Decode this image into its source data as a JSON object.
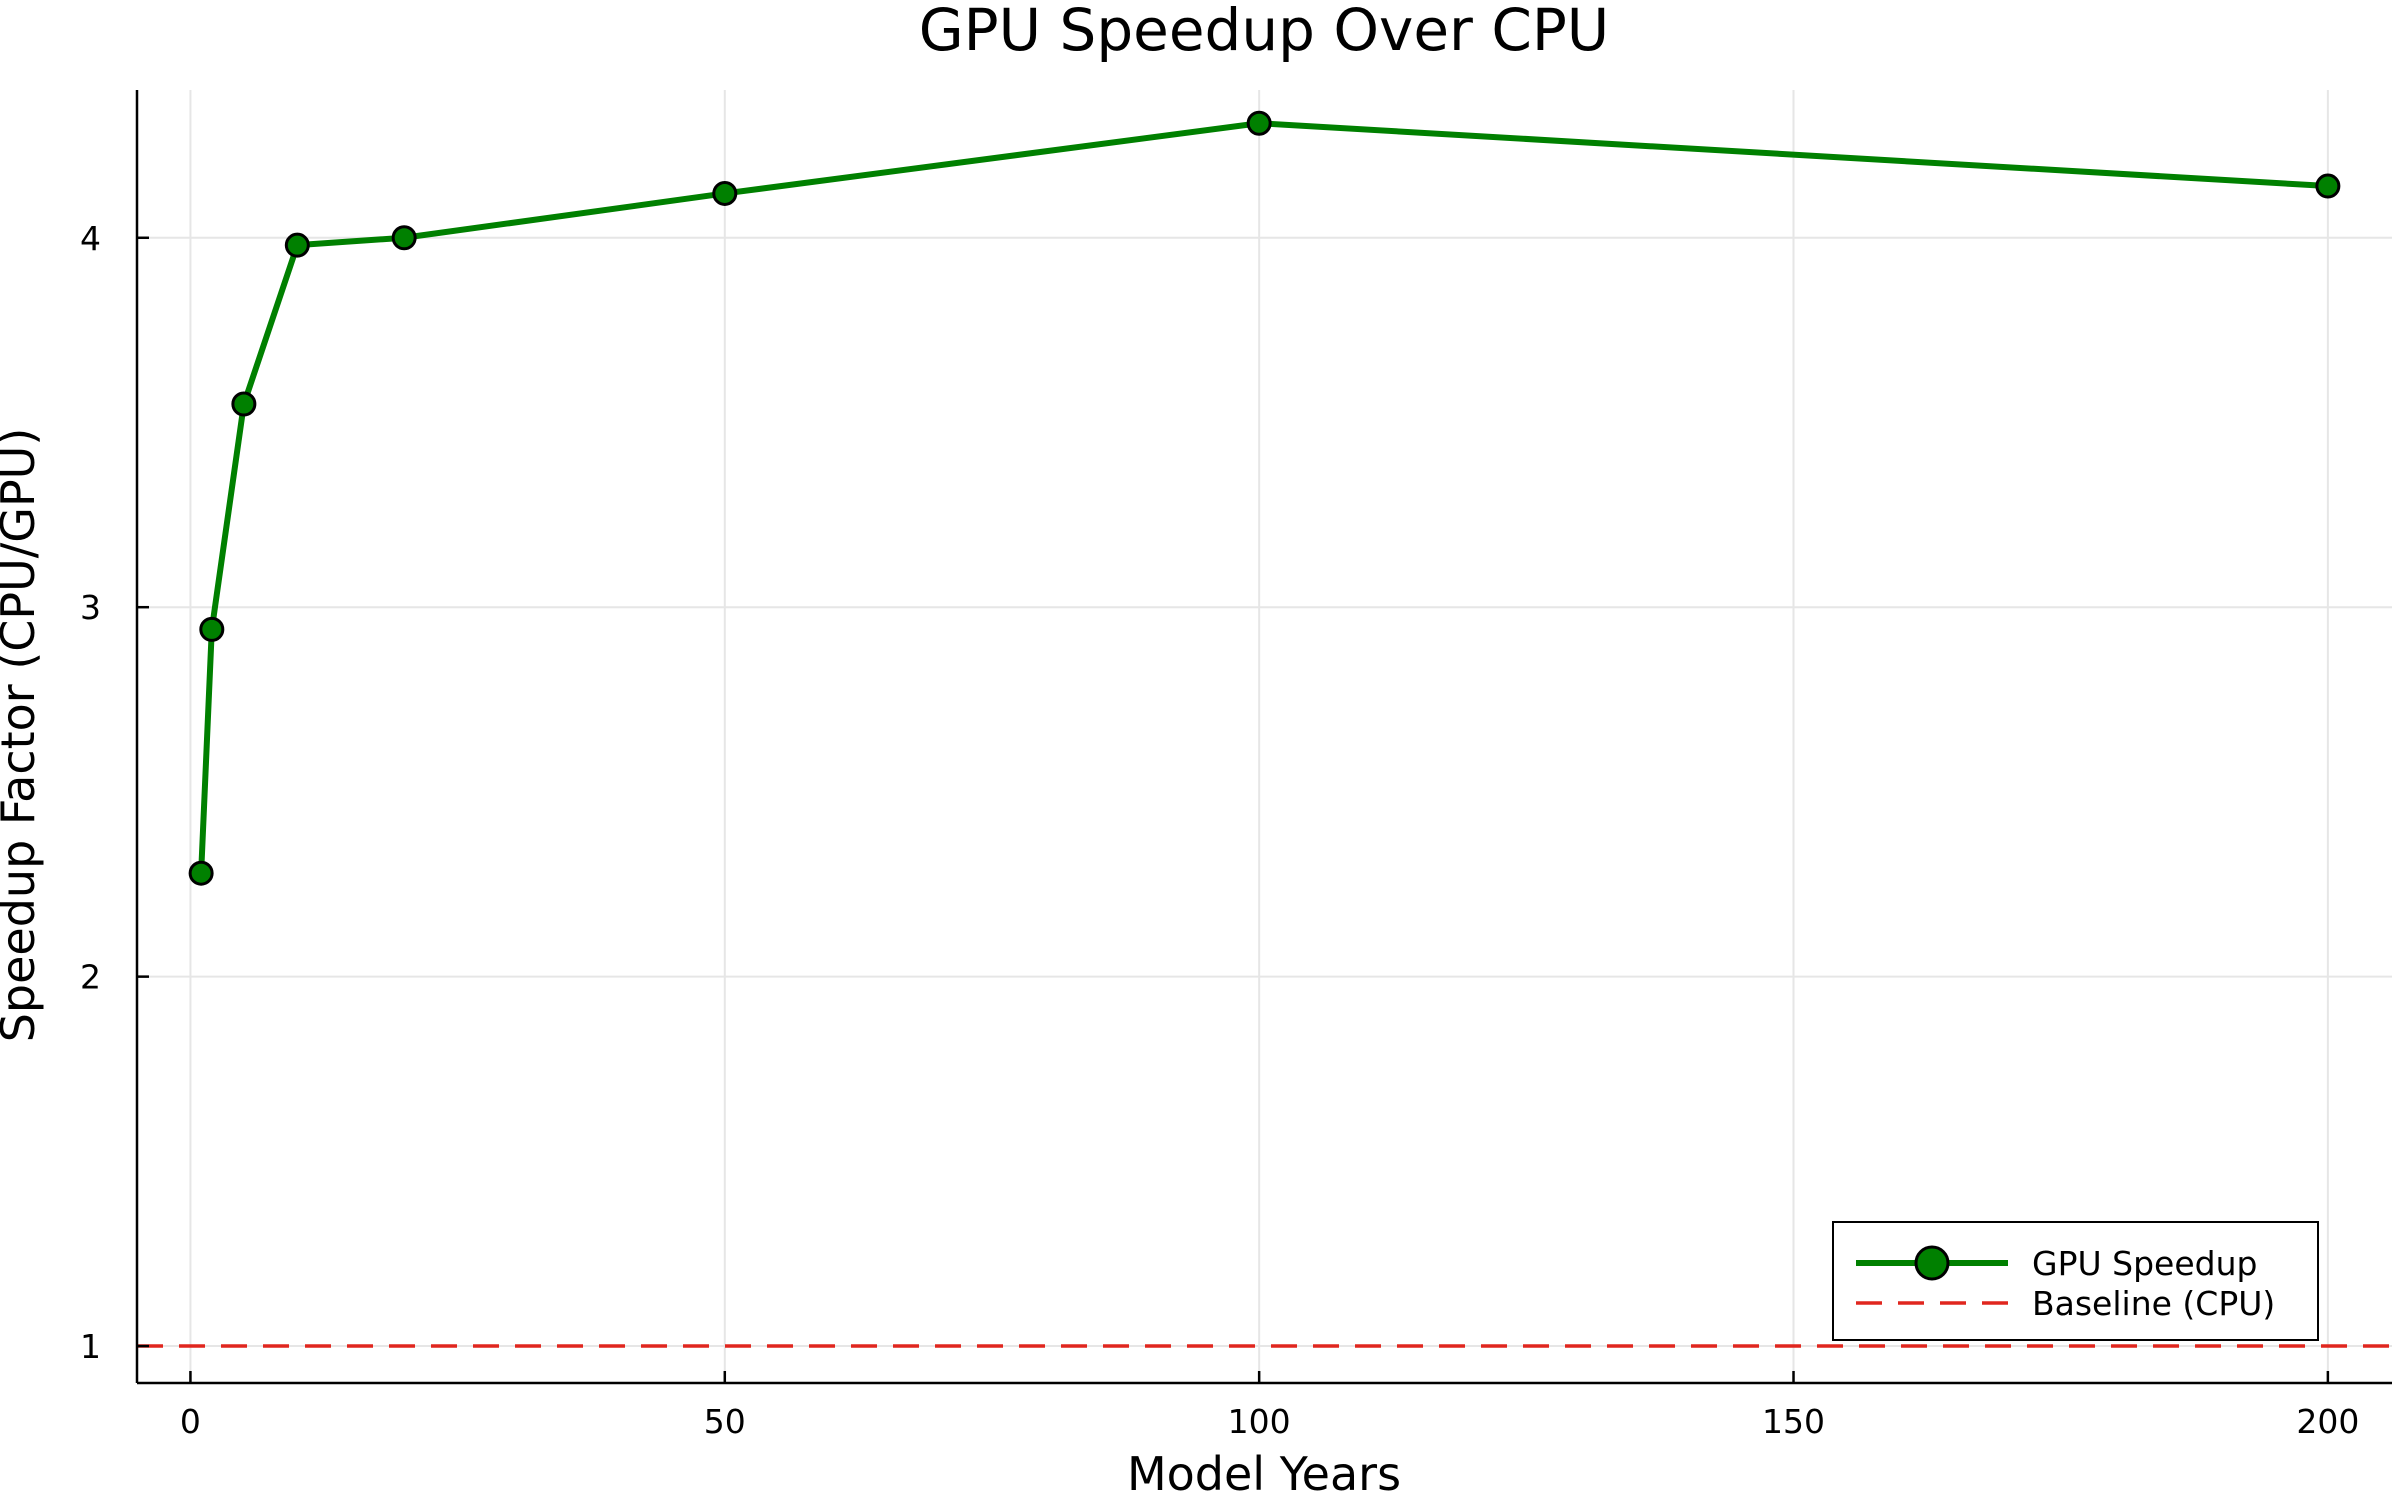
{
  "chart_data": {
    "type": "line",
    "title": "GPU Speedup Over CPU",
    "xlabel": "Model Years",
    "ylabel": "Speedup Factor (CPU/GPU)",
    "xlim": [
      -5,
      206
    ],
    "ylim": [
      0.9,
      4.4
    ],
    "x_ticks": [
      0,
      50,
      100,
      150,
      200
    ],
    "y_ticks": [
      1,
      2,
      3,
      4
    ],
    "grid": true,
    "legend_position": "bottom-right",
    "series": [
      {
        "name": "GPU Speedup",
        "color": "#008000",
        "marker": "circle",
        "line_style": "solid",
        "x": [
          1,
          2,
          5,
          10,
          20,
          50,
          100,
          200
        ],
        "y": [
          2.28,
          2.94,
          3.55,
          3.98,
          4.0,
          4.12,
          4.31,
          4.14
        ]
      },
      {
        "name": "Baseline (CPU)",
        "color": "#e0261e",
        "line_style": "dashed",
        "y_constant": 1
      }
    ]
  }
}
